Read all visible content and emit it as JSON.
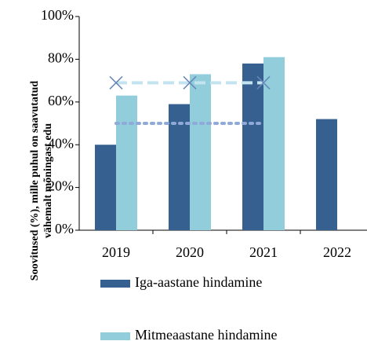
{
  "chart_data": {
    "type": "bar",
    "ylabel": [
      "Soovitused (%), mille puhul on saavutatud",
      "vähemalt mõningast edu"
    ],
    "categories": [
      "2019",
      "2020",
      "2021",
      "2022"
    ],
    "series": [
      {
        "name": "Iga-aastane hindamine",
        "color": "#35608f",
        "values": [
          40,
          59,
          78,
          52
        ]
      },
      {
        "name": "Mitmeaastane hindamine",
        "color": "#92cddc",
        "values": [
          63,
          73,
          81,
          null
        ]
      }
    ],
    "line_series": [
      {
        "color": "#c3e4ef",
        "style": "dashed",
        "marker": "x",
        "marker_color": "#6787b7",
        "values": [
          69,
          69,
          69,
          null
        ]
      },
      {
        "color": "#8fa9d8",
        "style": "dotted",
        "values": [
          50,
          50,
          50,
          null
        ]
      }
    ],
    "ylim": [
      0,
      100
    ],
    "yticks": [
      {
        "value": 0,
        "label": "0%"
      },
      {
        "value": 20,
        "label": "20%"
      },
      {
        "value": 40,
        "label": "40%"
      },
      {
        "value": 60,
        "label": "60%"
      },
      {
        "value": 80,
        "label": "80%"
      },
      {
        "value": 100,
        "label": "100%"
      }
    ]
  }
}
